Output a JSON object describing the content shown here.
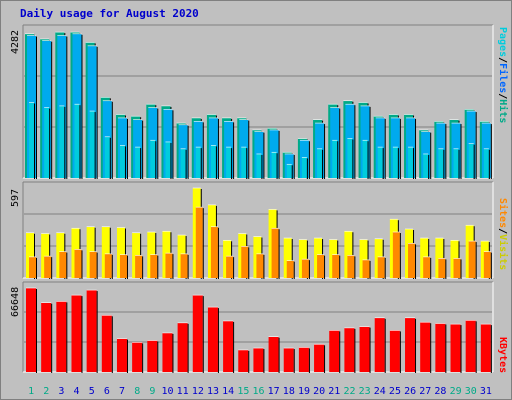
{
  "title": "Daily usage for August 2020",
  "colors": {
    "pages": "#00ccdd",
    "files": "#00aaee",
    "hits": "#00aa88",
    "sites": "#ff8800",
    "visits": "#ffff00",
    "kbytes": "#ff0000",
    "title": "#0000cc",
    "weekday_label": "#0000cc",
    "weekend_label": "#00aa88"
  },
  "panels": {
    "top": {
      "ymax_label": "4282",
      "legend": [
        "Pages",
        "/",
        "Files",
        "/",
        "Hits"
      ]
    },
    "middle": {
      "ymax_label": "597",
      "legend": [
        "Sites",
        "/",
        "Visits"
      ]
    },
    "bottom": {
      "ymax_label": "66648",
      "legend": [
        "KBytes"
      ]
    }
  },
  "chart_data": {
    "type": "bar",
    "categories": [
      "1",
      "2",
      "3",
      "4",
      "5",
      "6",
      "7",
      "8",
      "9",
      "10",
      "11",
      "12",
      "13",
      "14",
      "15",
      "16",
      "17",
      "18",
      "19",
      "20",
      "21",
      "22",
      "23",
      "24",
      "25",
      "26",
      "27",
      "28",
      "29",
      "30",
      "31"
    ],
    "weekend_days": [
      "1",
      "2",
      "8",
      "9",
      "15",
      "16",
      "22",
      "23",
      "29",
      "30"
    ],
    "panels": [
      {
        "name": "top",
        "ymax": 4282,
        "series": [
          {
            "name": "Hits",
            "values": [
              4200,
              4050,
              4250,
              4250,
              3950,
              2350,
              1850,
              1800,
              2150,
              2100,
              1600,
              1750,
              1850,
              1750,
              1750,
              1400,
              1450,
              750,
              1150,
              1700,
              2150,
              2250,
              2200,
              1800,
              1850,
              1850,
              1400,
              1650,
              1700,
              2000,
              1650
            ]
          },
          {
            "name": "Files",
            "values": [
              4150,
              4000,
              4150,
              4200,
              3850,
              2250,
              1750,
              1700,
              2050,
              2000,
              1550,
              1650,
              1750,
              1650,
              1700,
              1350,
              1400,
              700,
              1100,
              1600,
              2050,
              2150,
              2100,
              1750,
              1750,
              1750,
              1350,
              1600,
              1600,
              1950,
              1600
            ]
          },
          {
            "name": "Pages",
            "values": [
              2200,
              2050,
              2100,
              2150,
              1950,
              1200,
              950,
              900,
              1100,
              1050,
              850,
              900,
              950,
              900,
              900,
              700,
              750,
              400,
              600,
              850,
              1100,
              1150,
              1100,
              900,
              900,
              900,
              700,
              850,
              850,
              1000,
              850
            ]
          }
        ]
      },
      {
        "name": "middle",
        "ymax": 597,
        "series": [
          {
            "name": "Visits",
            "values": [
              300,
              295,
              300,
              330,
              340,
              340,
              335,
              300,
              305,
              310,
              285,
              597,
              485,
              250,
              295,
              275,
              455,
              265,
              255,
              265,
              255,
              310,
              255,
              260,
              390,
              325,
              265,
              265,
              250,
              350,
              245
            ]
          },
          {
            "name": "Sites",
            "values": [
              140,
              145,
              175,
              190,
              175,
              160,
              155,
              150,
              155,
              165,
              160,
              470,
              340,
              145,
              210,
              160,
              330,
              115,
              125,
              155,
              155,
              150,
              120,
              140,
              305,
              230,
              140,
              130,
              130,
              245,
              175
            ]
          }
        ]
      },
      {
        "name": "bottom",
        "ymax": 66648,
        "series": [
          {
            "name": "KBytes",
            "values": [
              66648,
              55000,
              56000,
              61000,
              65000,
              45000,
              26500,
              23500,
              25000,
              31000,
              39000,
              61000,
              51500,
              40500,
              17500,
              19000,
              28000,
              19000,
              19500,
              22000,
              33000,
              35000,
              36000,
              43000,
              33000,
              43000,
              39500,
              38500,
              38000,
              41000,
              38000
            ]
          }
        ]
      }
    ]
  }
}
